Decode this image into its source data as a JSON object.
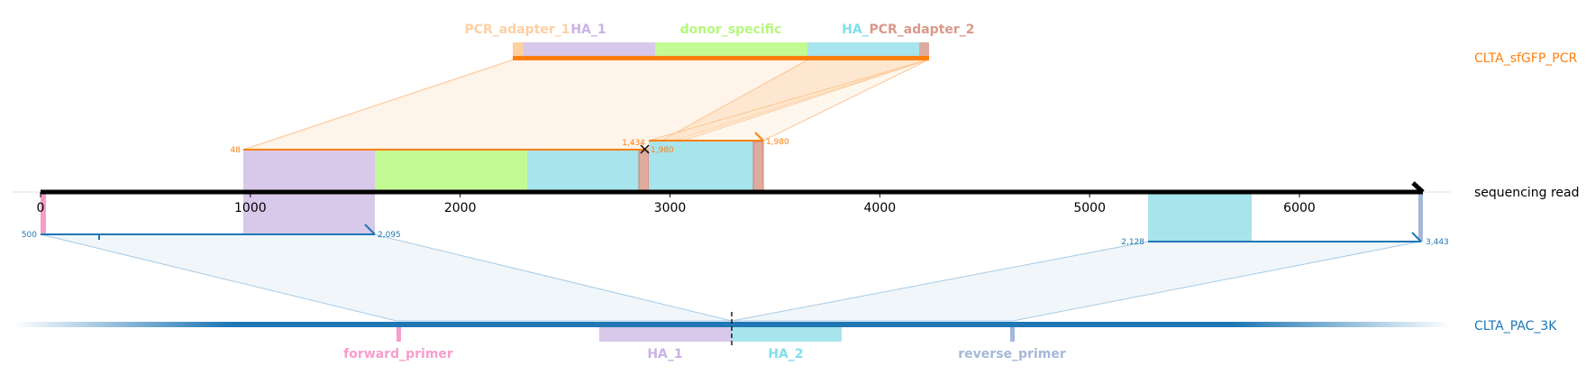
{
  "tracks": {
    "top": {
      "name": "CLTA_sfGFP_PCR",
      "color": "#ff7f0e"
    },
    "reference": {
      "name": "sequencing read",
      "color": "#000000"
    },
    "bottom": {
      "name": "CLTA_PAC_3K",
      "color": "#1f77b4"
    }
  },
  "axis": {
    "ticks": [
      "0",
      "1000",
      "2000",
      "3000",
      "4000",
      "5000",
      "6000"
    ]
  },
  "top_features": [
    {
      "name": "PCR_adapter_1",
      "color": "#fdd0a2"
    },
    {
      "name": "HA_1",
      "color": "#cab2e6"
    },
    {
      "name": "donor_specific",
      "color": "#b6f77d"
    },
    {
      "name": "HA_",
      "color": "#80deea"
    },
    {
      "name": "PCR_adapter_2",
      "color": "#d9998a"
    }
  ],
  "bottom_features": [
    {
      "name": "forward_primer",
      "color": "#f79dcb"
    },
    {
      "name": "HA_1",
      "color": "#cab2e6"
    },
    {
      "name": "HA_2",
      "color": "#80deea"
    },
    {
      "name": "reverse_primer",
      "color": "#a5b8d8"
    }
  ],
  "alignment_coords": {
    "top_left_start": "48",
    "top_mid_end": "1,434",
    "top_mid_start": "1,980",
    "top_right_end": "1,980",
    "bottom_left_start": "500",
    "bottom_left_end": "2,095",
    "bottom_right_start": "2,128",
    "bottom_right_end": "3,443"
  }
}
